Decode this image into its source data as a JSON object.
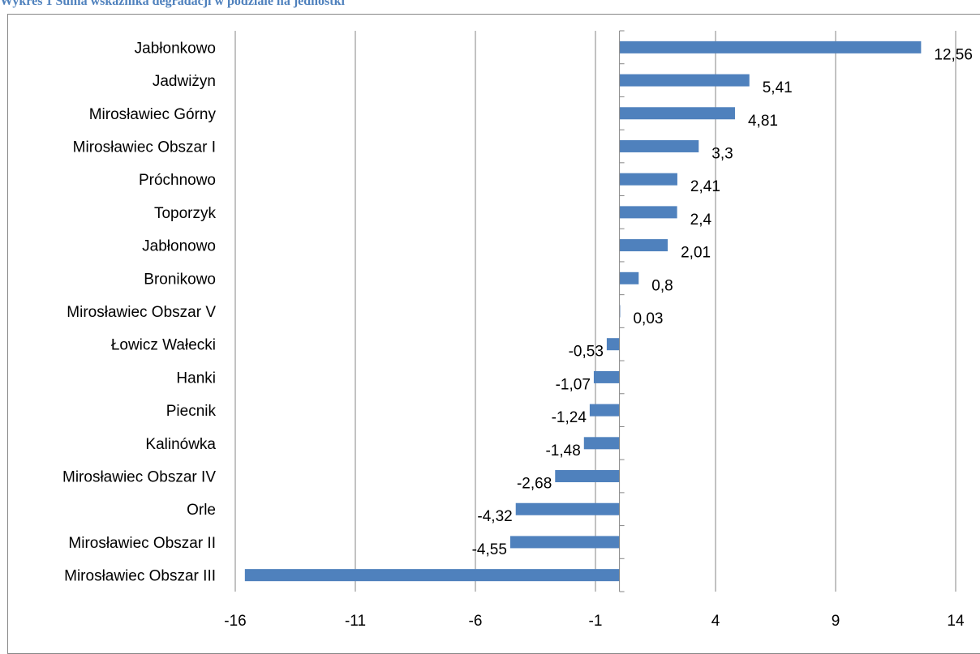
{
  "caption": "Wykres 1 Suma wskaźnika degradacji w podziale na jednostki",
  "chart_data": {
    "type": "bar",
    "orientation": "horizontal",
    "title": "",
    "xlabel": "",
    "ylabel": "",
    "categories": [
      "Jabłonkowo",
      "Jadwiżyn",
      "Mirosławiec Górny",
      "Mirosławiec Obszar I",
      "Próchnowo",
      "Toporzyk",
      "Jabłonowo",
      "Bronikowo",
      "Mirosławiec Obszar V",
      "Łowicz Wałecki",
      "Hanki",
      "Piecnik",
      "Kalinówka",
      "Mirosławiec Obszar IV",
      "Orle",
      "Mirosławiec Obszar II",
      "Mirosławiec Obszar III"
    ],
    "values": [
      12.56,
      5.41,
      4.81,
      3.3,
      2.41,
      2.4,
      2.01,
      0.8,
      0.03,
      -0.53,
      -1.07,
      -1.24,
      -1.48,
      -2.68,
      -4.32,
      -4.55,
      -15.6
    ],
    "data_labels": [
      "12,56",
      "5,41",
      "4,81",
      "3,3",
      "2,41",
      "2,4",
      "2,01",
      "0,8",
      "0,03",
      "-0,53",
      "-1,07",
      "-1,24",
      "-1,48",
      "-2,68",
      "-4,32",
      "-4,55",
      ""
    ],
    "xlim": [
      -16,
      14
    ],
    "xticks": [
      -16,
      -11,
      -6,
      -1,
      4,
      9,
      14
    ],
    "xtick_labels": [
      "-16",
      "-11",
      "-6",
      "-1",
      "4",
      "9",
      "14"
    ],
    "grid": "vertical major gridlines",
    "legend": "none",
    "bar_color": "#4f81bd",
    "gridline_color": "#868686"
  }
}
